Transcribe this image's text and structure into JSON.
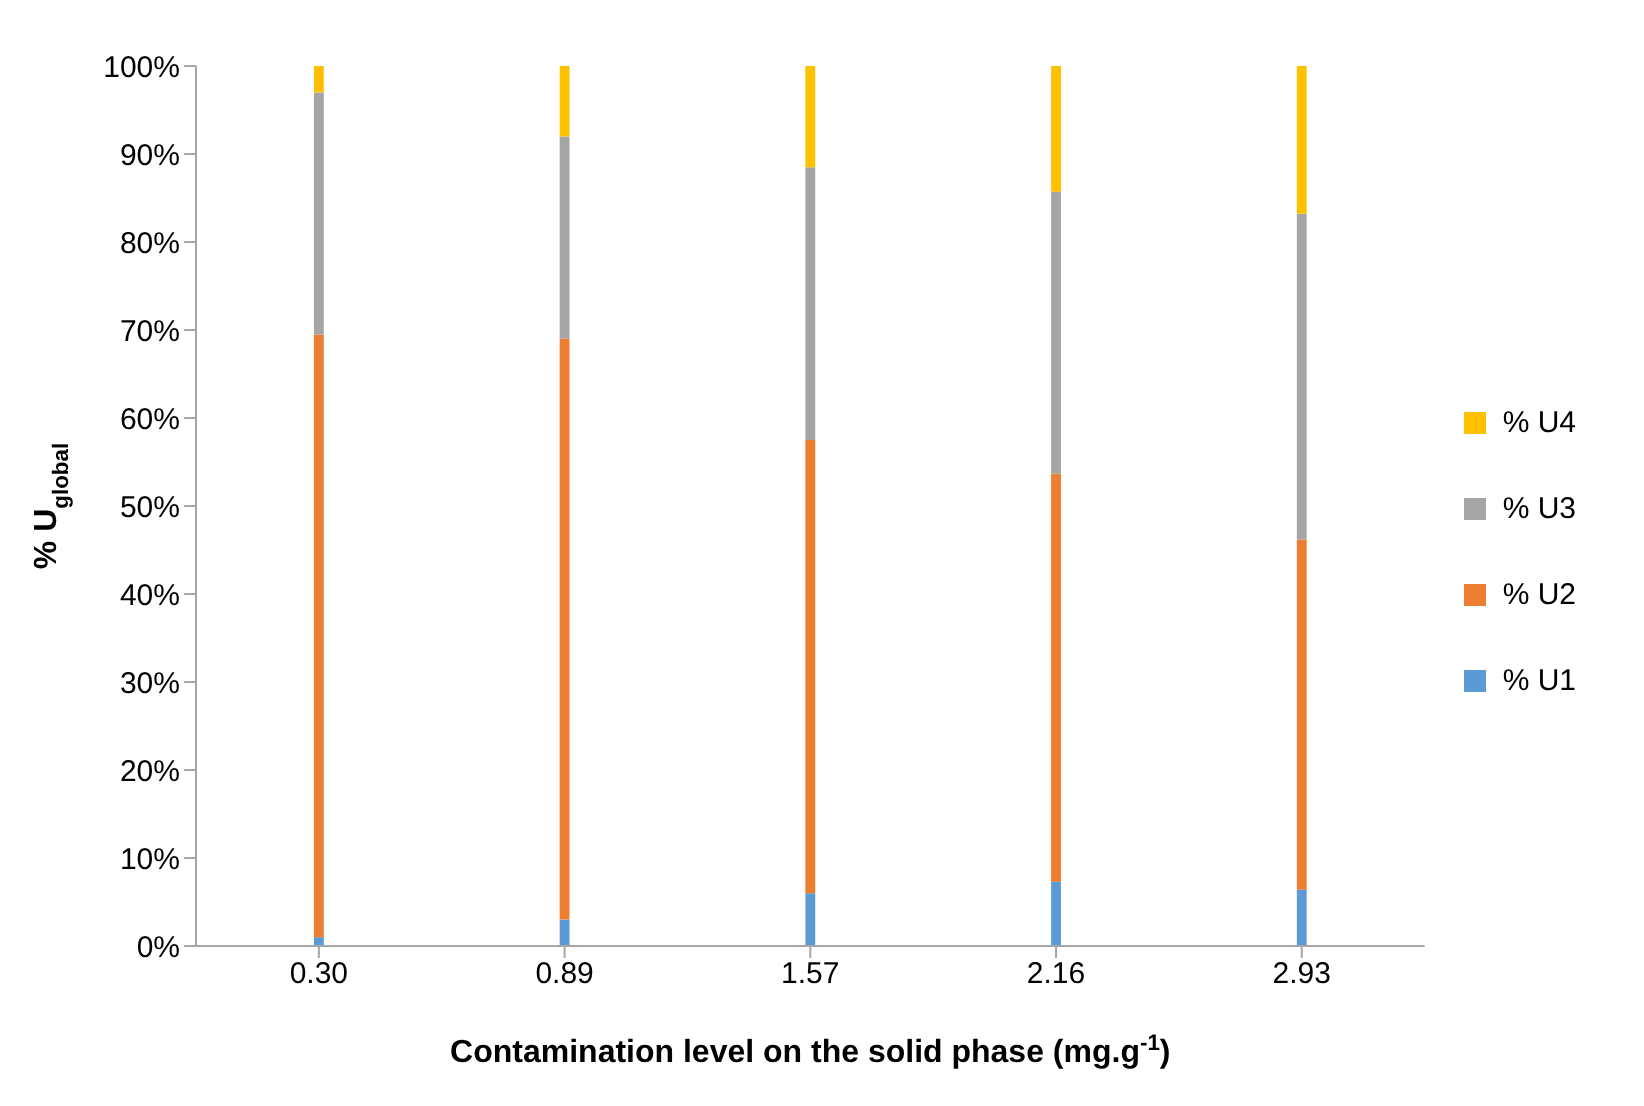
{
  "chart_data": {
    "type": "bar",
    "stacked": true,
    "xlabel": "Contamination level on the solid phase (mg.g$^{-1}$)",
    "ylabel": "% U$_{global}$",
    "categories": [
      "0.30",
      "0.89",
      "1.57",
      "2.16",
      "2.93"
    ],
    "series": [
      {
        "name": "% U1",
        "color": "#5b9bd5",
        "values": [
          1,
          3,
          6,
          7.3,
          6.4
        ]
      },
      {
        "name": "% U2",
        "color": "#ed7d31",
        "values": [
          68.5,
          66,
          51.5,
          46.4,
          39.8
        ]
      },
      {
        "name": "% U3",
        "color": "#a5a5a5",
        "values": [
          27.5,
          23,
          31,
          32,
          37
        ]
      },
      {
        "name": "% U4",
        "color": "#ffc000",
        "values": [
          3,
          8,
          11.5,
          14.3,
          16.8
        ]
      }
    ],
    "ylim": [
      0,
      100
    ],
    "yticks": [
      {
        "value": 0,
        "label": "0%"
      },
      {
        "value": 10,
        "label": "10%"
      },
      {
        "value": 20,
        "label": "20%"
      },
      {
        "value": 30,
        "label": "30%"
      },
      {
        "value": 40,
        "label": "40%"
      },
      {
        "value": 50,
        "label": "50%"
      },
      {
        "value": 60,
        "label": "60%"
      },
      {
        "value": 70,
        "label": "70%"
      },
      {
        "value": 80,
        "label": "80%"
      },
      {
        "value": 90,
        "label": "90%"
      },
      {
        "value": 100,
        "label": "100%"
      }
    ],
    "grid": false,
    "legend": "right"
  }
}
